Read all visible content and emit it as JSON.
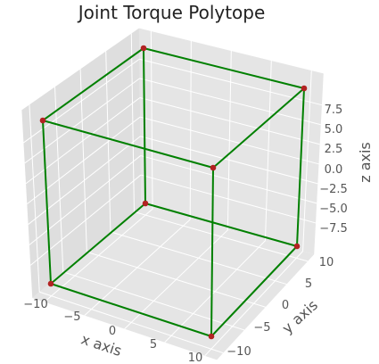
{
  "chart_data": {
    "type": "3d-wireframe",
    "title": "Joint Torque Polytope",
    "xlabel": "x axis",
    "ylabel": "y axis",
    "zlabel": "z axis",
    "x_ticks": [
      "−10",
      "−5",
      "0",
      "5",
      "10"
    ],
    "y_ticks": [
      "−10",
      "−5",
      "0",
      "5",
      "10"
    ],
    "z_ticks": [
      "−7.5",
      "−5.0",
      "−2.5",
      "0.0",
      "2.5",
      "5.0",
      "7.5"
    ],
    "vertices": [
      {
        "x": -10,
        "y": -10,
        "z": -10
      },
      {
        "x": 10,
        "y": -10,
        "z": -10
      },
      {
        "x": 10,
        "y": 10,
        "z": -10
      },
      {
        "x": -10,
        "y": 10,
        "z": -10
      },
      {
        "x": -10,
        "y": -10,
        "z": 10
      },
      {
        "x": 10,
        "y": -10,
        "z": 10
      },
      {
        "x": 10,
        "y": 10,
        "z": 10
      },
      {
        "x": -10,
        "y": 10,
        "z": 10
      }
    ],
    "edges": [
      [
        0,
        1
      ],
      [
        1,
        2
      ],
      [
        2,
        3
      ],
      [
        3,
        0
      ],
      [
        4,
        5
      ],
      [
        5,
        6
      ],
      [
        6,
        7
      ],
      [
        7,
        4
      ],
      [
        0,
        4
      ],
      [
        1,
        5
      ],
      [
        2,
        6
      ],
      [
        3,
        7
      ]
    ],
    "edge_color": "#008000",
    "vertex_color": "#b22222",
    "pane_color": "#e5e5e5",
    "grid": true
  }
}
